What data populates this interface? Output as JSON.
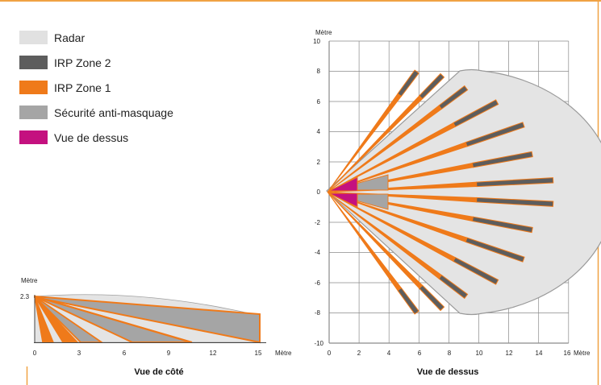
{
  "legend": [
    {
      "label": "Radar",
      "color": "#e1e1e1"
    },
    {
      "label": "IRP Zone 2",
      "color": "#5d5d5d"
    },
    {
      "label": "IRP Zone 1",
      "color": "#ef7a1a"
    },
    {
      "label": "Sécurité anti-masquage",
      "color": "#a5a5a5"
    },
    {
      "label": "Vue de dessus",
      "color": "#c4117f"
    }
  ],
  "colors": {
    "frame": "#f0a244",
    "gridline": "#8a8a8a",
    "radar_edge": "#9a9a9a"
  },
  "side_view": {
    "title": "Vue de côté",
    "y_unit": "Mètre",
    "y_tick": "2.3",
    "x_ticks": [
      "0",
      "3",
      "6",
      "9",
      "12",
      "15"
    ],
    "x_unit": "Mètre"
  },
  "top_view": {
    "title": "Vue de dessus",
    "y_unit": "Mètre",
    "y_ticks": [
      "10",
      "8",
      "6",
      "4",
      "2",
      "0",
      "-2",
      "-4",
      "-6",
      "-8",
      "-10"
    ],
    "x_ticks": [
      "0",
      "2",
      "4",
      "6",
      "8",
      "10",
      "12",
      "14",
      "16"
    ],
    "x_unit": "Mètre"
  }
}
